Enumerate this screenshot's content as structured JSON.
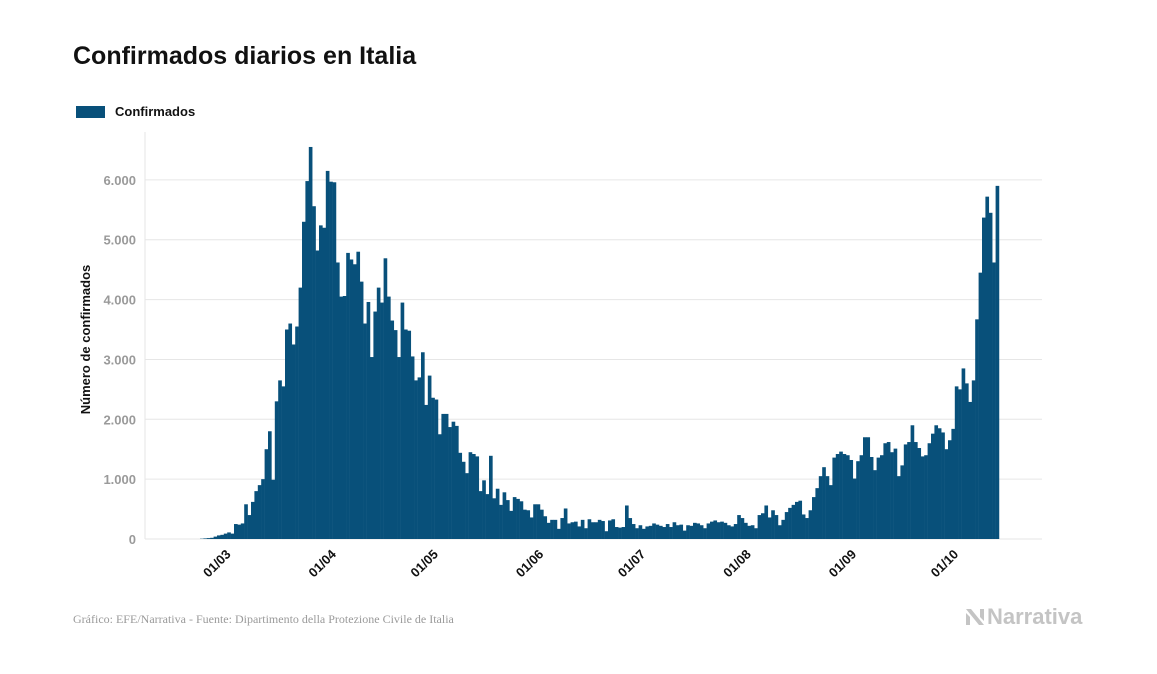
{
  "title": "Confirmados diarios en Italia",
  "footer": {
    "source": "Gráfico: EFE/Narrativa - Fuente: Dipartimento della Protezione Civile de Italia",
    "brand": "Narrativa"
  },
  "colors": {
    "bar": "#08507a",
    "grid": "#e6e6e6",
    "brand": "#c4c4c4"
  },
  "chart_data": {
    "type": "bar",
    "title": "Confirmados diarios en Italia",
    "xlabel": "",
    "ylabel": "Número de confirmados",
    "ylim": [
      0,
      6800
    ],
    "grid": true,
    "legend": {
      "position": "top-left",
      "entries": [
        "Confirmados"
      ]
    },
    "yticks": [
      0,
      1000,
      2000,
      3000,
      4000,
      5000,
      6000
    ],
    "ytick_labels": [
      "0",
      "1.000",
      "2.000",
      "3.000",
      "4.000",
      "5.000",
      "6.000"
    ],
    "xtick_labels": [
      "01/03",
      "01/04",
      "01/05",
      "01/06",
      "01/07",
      "01/08",
      "01/09",
      "01/10"
    ],
    "xtick_day_index": [
      7,
      38,
      68,
      99,
      129,
      160,
      191,
      221
    ],
    "x_start": "2020-02-23",
    "series": [
      {
        "name": "Confirmados",
        "values": [
          5,
          10,
          15,
          20,
          40,
          60,
          70,
          90,
          110,
          90,
          250,
          240,
          260,
          580,
          400,
          620,
          800,
          900,
          1000,
          1500,
          1800,
          990,
          2300,
          2650,
          2550,
          3500,
          3600,
          3250,
          3550,
          4200,
          5300,
          5980,
          6550,
          5560,
          4820,
          5240,
          5200,
          6150,
          5970,
          5960,
          4620,
          4050,
          4060,
          4780,
          4670,
          4590,
          4800,
          4300,
          3600,
          3960,
          3040,
          3800,
          4200,
          3950,
          4690,
          4050,
          3650,
          3490,
          3040,
          3950,
          3500,
          3480,
          3050,
          2650,
          2700,
          3120,
          2240,
          2730,
          2360,
          2330,
          1750,
          2090,
          2090,
          1870,
          1960,
          1890,
          1440,
          1290,
          1100,
          1450,
          1420,
          1380,
          800,
          980,
          750,
          1390,
          680,
          840,
          570,
          780,
          650,
          470,
          700,
          670,
          630,
          490,
          480,
          360,
          580,
          580,
          490,
          380,
          270,
          320,
          320,
          170,
          350,
          510,
          260,
          280,
          290,
          210,
          320,
          180,
          330,
          280,
          280,
          320,
          300,
          130,
          310,
          330,
          200,
          190,
          200,
          560,
          350,
          250,
          180,
          230,
          170,
          210,
          220,
          260,
          240,
          220,
          200,
          250,
          200,
          280,
          230,
          240,
          140,
          230,
          220,
          270,
          260,
          230,
          180,
          260,
          290,
          310,
          280,
          290,
          270,
          230,
          210,
          250,
          400,
          350,
          270,
          220,
          230,
          180,
          400,
          430,
          560,
          360,
          480,
          400,
          230,
          320,
          450,
          520,
          570,
          620,
          640,
          410,
          350,
          480,
          700,
          850,
          1050,
          1200,
          1050,
          900,
          1360,
          1420,
          1460,
          1420,
          1400,
          1320,
          1010,
          1300,
          1400,
          1700,
          1700,
          1370,
          1150,
          1360,
          1400,
          1600,
          1620,
          1450,
          1510,
          1050,
          1230,
          1580,
          1620,
          1900,
          1620,
          1520,
          1380,
          1400,
          1600,
          1760,
          1900,
          1850,
          1780,
          1500,
          1650,
          1840,
          2550,
          2500,
          2850,
          2600,
          2290,
          2650,
          3670,
          4450,
          5370,
          5720,
          5450,
          4620,
          5900
        ]
      }
    ]
  }
}
